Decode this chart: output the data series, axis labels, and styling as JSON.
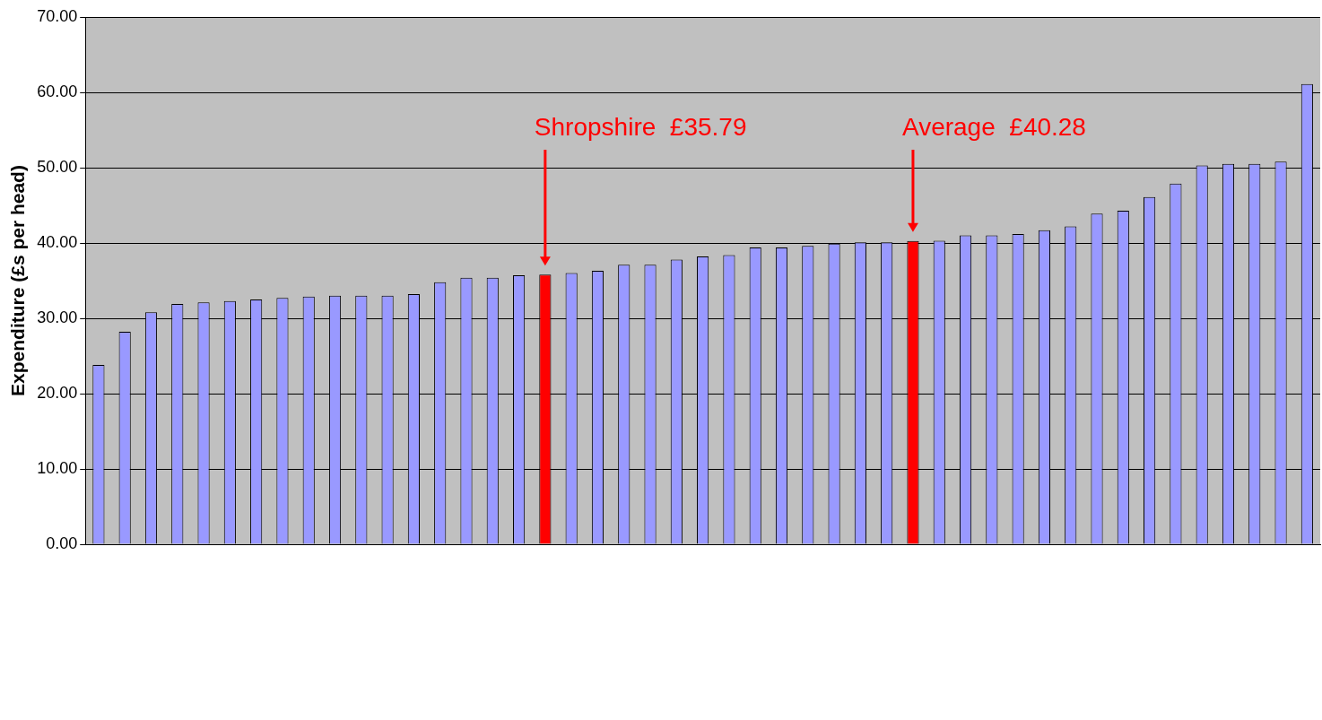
{
  "chart_data": {
    "type": "bar",
    "ylabel": "Expenditure (£s per head)",
    "categories": [
      null,
      null,
      null,
      null,
      null,
      null,
      null,
      null,
      null,
      null,
      null,
      null,
      null,
      null,
      null,
      null,
      null,
      null,
      null,
      null,
      null,
      null,
      null,
      null,
      null,
      null,
      null,
      null,
      null,
      null,
      null,
      null,
      null,
      null,
      null,
      null,
      null,
      null,
      null,
      null,
      null,
      null,
      null,
      null,
      null,
      null,
      null
    ],
    "values": [
      23.8,
      28.2,
      30.8,
      31.9,
      32.1,
      32.3,
      32.5,
      32.7,
      32.9,
      33.0,
      33.0,
      33.0,
      33.2,
      34.8,
      35.4,
      35.4,
      35.7,
      35.79,
      36.0,
      36.3,
      37.1,
      37.1,
      37.8,
      38.2,
      38.4,
      39.4,
      39.4,
      39.6,
      39.9,
      40.1,
      40.1,
      40.28,
      40.3,
      41.0,
      41.0,
      41.2,
      41.7,
      42.2,
      43.9,
      44.3,
      46.1,
      47.9,
      50.3,
      50.5,
      50.5,
      50.8,
      61.1
    ],
    "colors": [
      "#9999ff",
      "#9999ff",
      "#9999ff",
      "#9999ff",
      "#9999ff",
      "#9999ff",
      "#9999ff",
      "#9999ff",
      "#9999ff",
      "#9999ff",
      "#9999ff",
      "#9999ff",
      "#9999ff",
      "#9999ff",
      "#9999ff",
      "#9999ff",
      "#9999ff",
      "#ff0000",
      "#9999ff",
      "#9999ff",
      "#9999ff",
      "#9999ff",
      "#9999ff",
      "#9999ff",
      "#9999ff",
      "#9999ff",
      "#9999ff",
      "#9999ff",
      "#9999ff",
      "#9999ff",
      "#9999ff",
      "#ff0000",
      "#9999ff",
      "#9999ff",
      "#9999ff",
      "#9999ff",
      "#9999ff",
      "#9999ff",
      "#9999ff",
      "#9999ff",
      "#9999ff",
      "#9999ff",
      "#9999ff",
      "#9999ff",
      "#9999ff",
      "#9999ff",
      "#9999ff"
    ],
    "ylim": [
      0,
      70
    ],
    "yticks": [
      {
        "value": 0,
        "label": "0.00"
      },
      {
        "value": 10,
        "label": "10.00"
      },
      {
        "value": 20,
        "label": "20.00"
      },
      {
        "value": 30,
        "label": "30.00"
      },
      {
        "value": 40,
        "label": "40.00"
      },
      {
        "value": 50,
        "label": "50.00"
      },
      {
        "value": 60,
        "label": "60.00"
      },
      {
        "value": 70,
        "label": "70.00"
      }
    ],
    "annotations": [
      "Shropshire  £35.79",
      "Average  £40.28"
    ],
    "grid": "y",
    "legend": false,
    "tick_labels": "y"
  }
}
